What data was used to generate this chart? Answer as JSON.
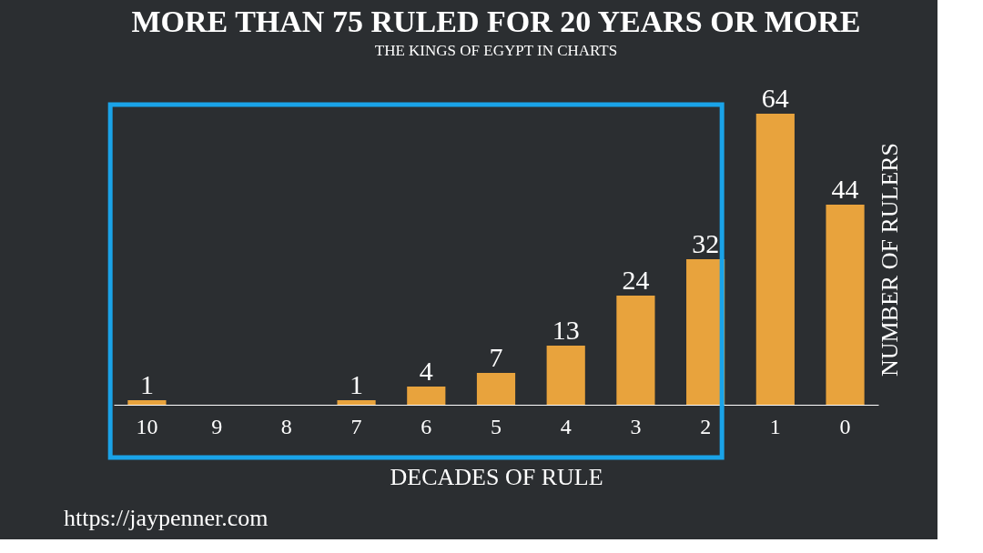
{
  "chart_data": {
    "type": "bar",
    "title": "MORE THAN 75 RULED FOR 20 YEARS OR MORE",
    "subtitle": "THE KINGS OF EGYPT IN CHARTS",
    "xlabel": "DECADES OF RULE",
    "ylabel": "NUMBER OF RULERS",
    "categories": [
      "10",
      "9",
      "8",
      "7",
      "6",
      "5",
      "4",
      "3",
      "2",
      "1",
      "0"
    ],
    "values": [
      1,
      0,
      0,
      1,
      4,
      7,
      13,
      24,
      32,
      64,
      44
    ],
    "value_labels": [
      "1",
      null,
      null,
      "1",
      "4",
      "7",
      "13",
      "24",
      "32",
      "64",
      "44"
    ],
    "color": "#e8a33d",
    "annotations": [
      "https://jaypenner.com"
    ],
    "tick_labels": "x",
    "grid": false,
    "legend": false
  }
}
